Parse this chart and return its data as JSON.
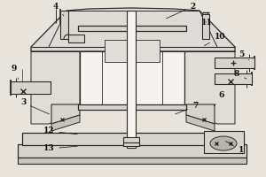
{
  "bg_color": "#e8e4dc",
  "line_color": "#2a2a2a",
  "light_fill": "#d8d4cc",
  "white_fill": "#f5f3ef",
  "label_fontsize": 6.5,
  "label_color": "#111111"
}
